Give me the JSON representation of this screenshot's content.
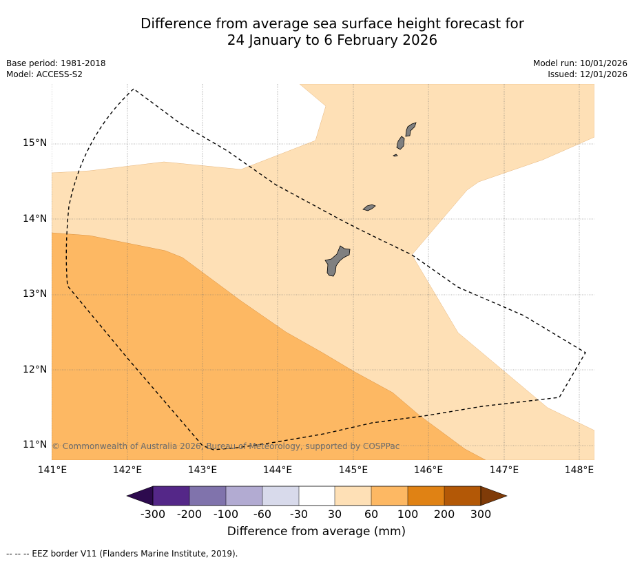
{
  "title": {
    "line1": "Difference from average sea surface height forecast for",
    "line2": "24 January to 6 February 2026"
  },
  "meta": {
    "base_period": "Base period: 1981-2018",
    "model": "Model: ACCESS-S2",
    "model_run": "Model run: 10/01/2026",
    "issued": "Issued: 12/01/2026"
  },
  "map": {
    "lat_labels": [
      "15°N",
      "14°N",
      "13°N",
      "12°N",
      "11°N"
    ],
    "lon_labels": [
      "141°E",
      "142°E",
      "143°E",
      "144°E",
      "145°E",
      "146°E",
      "147°E",
      "148°E"
    ],
    "copyright": "© Commonwealth of Australia 2026, Bureau of Meteorology, supported by COSPPac",
    "land_color": "#808080",
    "eez_line": "dashed"
  },
  "colorbar": {
    "ticks": [
      "-300",
      "-200",
      "-100",
      "-60",
      "-30",
      "30",
      "60",
      "100",
      "200",
      "300"
    ],
    "colors": {
      "under": "#2d0a4e",
      "b1": "#542788",
      "b2": "#8073ac",
      "b3": "#b2abd2",
      "b4": "#d8daeb",
      "b5": "#ffffff",
      "b6": "#fee0b6",
      "b7": "#fdb863",
      "b8": "#e08214",
      "b9": "#b35806",
      "over": "#7f3b08"
    },
    "title": "Difference from average (mm)"
  },
  "footer": "--  --  -- EEZ border V11 (Flanders Marine Institute, 2019)."
}
